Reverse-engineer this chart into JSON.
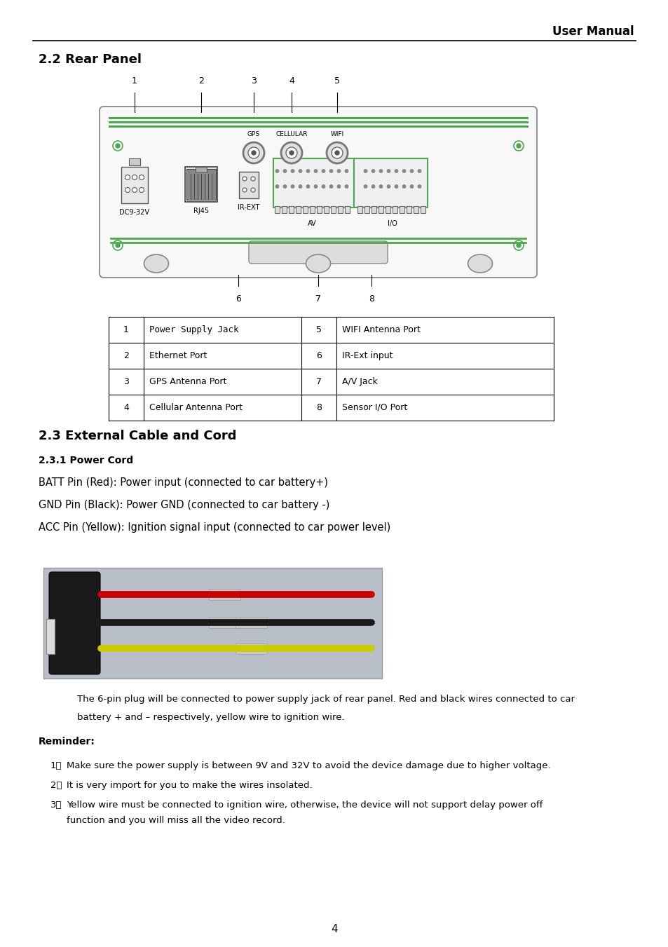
{
  "page_title": "User Manual",
  "section_22_title": "2.2 Rear Panel",
  "section_23_title": "2.3 External Cable and Cord",
  "section_231_title": "2.3.1 Power Cord",
  "table_data": [
    [
      "1",
      "Power Supply Jack",
      "5",
      "WIFI Antenna Port"
    ],
    [
      "2",
      "Ethernet Port",
      "6",
      "IR-Ext input"
    ],
    [
      "3",
      "GPS Antenna Port",
      "7",
      "A/V Jack"
    ],
    [
      "4",
      "Cellular Antenna Port",
      "8",
      "Sensor I/O Port"
    ]
  ],
  "power_cord_lines": [
    "BATT Pin (Red): Power input (connected to car battery+)",
    "GND Pin (Black): Power GND (connected to car battery -)",
    "ACC Pin (Yellow): Ignition signal input (connected to car power level)"
  ],
  "caption_line1": "The 6-pin plug will be connected to power supply jack of rear panel. Red and black wires connected to car",
  "caption_line2": "battery + and – respectively, yellow wire to ignition wire.",
  "reminder_title": "Reminder:",
  "reminder_items": [
    "Make sure the power supply is between 9V and 32V to avoid the device damage due to higher voltage.",
    "It is very import for you to make the wires insolated.",
    "Yellow wire must be connected to ignition wire, otherwise, the device will not support delay power off",
    "function and you will miss all the video record."
  ],
  "page_number": "4",
  "bg_color": "#ffffff",
  "text_color": "#000000",
  "green_color": "#4da84d",
  "diagram_bg": "#f8f8f8"
}
